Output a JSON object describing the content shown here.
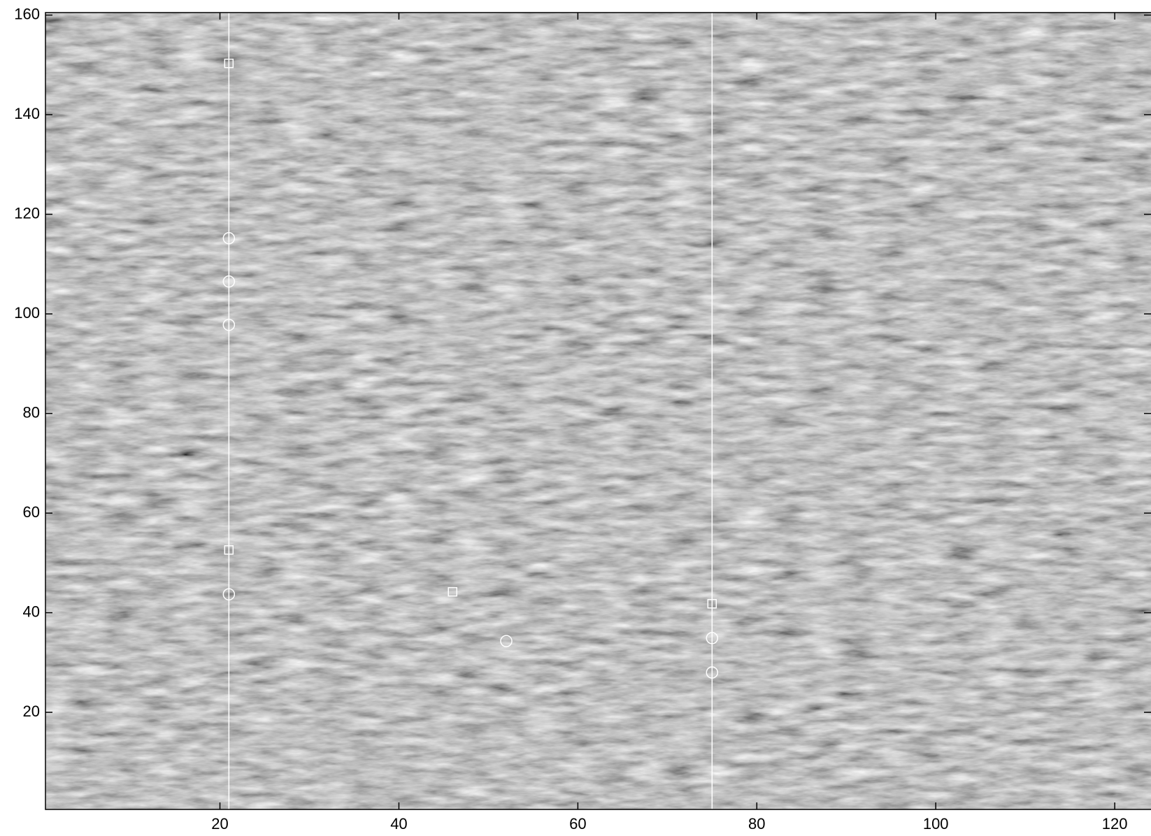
{
  "chart_data": {
    "type": "scatter",
    "xlim": [
      0.5,
      124
    ],
    "ylim": [
      0.5,
      160.5
    ],
    "xticks": [
      20,
      40,
      60,
      80,
      100,
      120
    ],
    "yticks": [
      20,
      40,
      60,
      80,
      100,
      120,
      140,
      160
    ],
    "vlines": [
      21,
      75
    ],
    "series": [
      {
        "marker": "square",
        "color": "#ffffff",
        "x": [
          21,
          21,
          46,
          75
        ],
        "y": [
          150.3,
          52.6,
          44.2,
          41.8
        ]
      },
      {
        "marker": "circle",
        "color": "#ffffff",
        "x": [
          21,
          21,
          21,
          21,
          52,
          75,
          75
        ],
        "y": [
          115.2,
          106.5,
          97.8,
          43.7,
          34.3,
          34.9,
          28.0
        ]
      }
    ]
  }
}
